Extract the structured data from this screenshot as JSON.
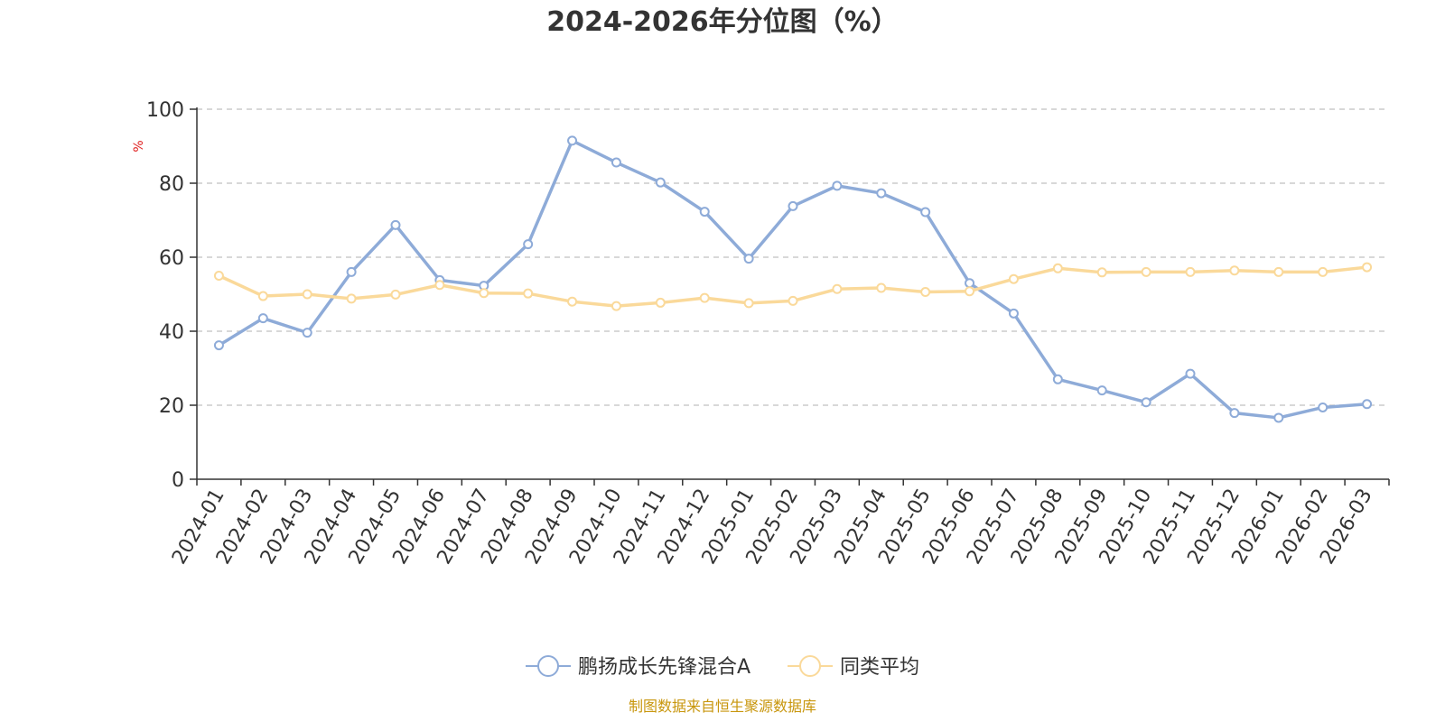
{
  "chart_data": {
    "type": "line",
    "title": "2024-2026年分位图（%）",
    "ylabel": "%",
    "ylim": [
      0,
      100
    ],
    "yticks": [
      0,
      20,
      40,
      60,
      80,
      100
    ],
    "grid": true,
    "legend_position": "bottom-center",
    "categories": [
      "2024-01",
      "2024-02",
      "2024-03",
      "2024-04",
      "2024-05",
      "2024-06",
      "2024-07",
      "2024-08",
      "2024-09",
      "2024-10",
      "2024-11",
      "2024-12",
      "2025-01",
      "2025-02",
      "2025-03",
      "2025-04",
      "2025-05",
      "2025-06",
      "2025-07",
      "2025-08",
      "2025-09",
      "2025-10",
      "2025-11",
      "2025-12",
      "2026-01",
      "2026-02",
      "2026-03"
    ],
    "series": [
      {
        "name": "鹏扬成长先锋混合A",
        "color": "#8eabd8",
        "values": [
          36.2,
          43.5,
          39.6,
          56.0,
          68.7,
          53.8,
          52.3,
          63.5,
          91.5,
          85.6,
          80.2,
          72.3,
          59.6,
          73.8,
          79.3,
          77.3,
          72.2,
          53.0,
          44.8,
          27.0,
          24.0,
          20.8,
          28.5,
          17.9,
          16.6,
          19.4,
          20.3
        ]
      },
      {
        "name": "同类平均",
        "color": "#fad99a",
        "values": [
          55.0,
          49.5,
          50.0,
          48.8,
          49.9,
          52.5,
          50.3,
          50.2,
          48.0,
          46.8,
          47.7,
          49.0,
          47.6,
          48.2,
          51.4,
          51.7,
          50.6,
          50.8,
          54.1,
          57.0,
          55.9,
          56.0,
          56.0,
          56.4,
          56.0,
          56.0,
          57.3
        ]
      }
    ]
  },
  "footer": {
    "source": "制图数据来自恒生聚源数据库"
  }
}
